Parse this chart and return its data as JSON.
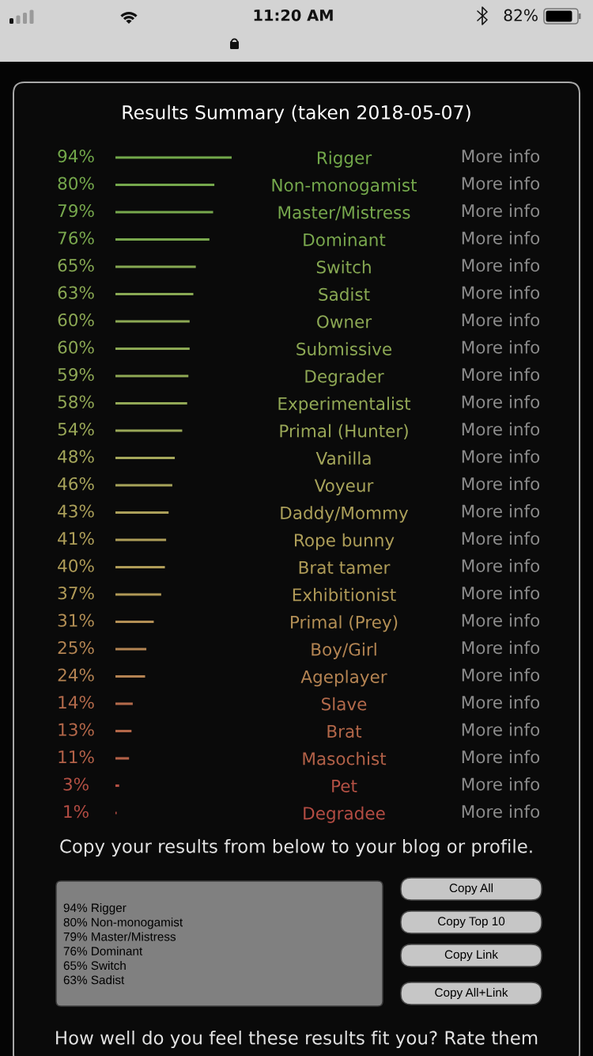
{
  "chart_data": {
    "type": "bar",
    "orientation": "horizontal",
    "title": "Results Summary (taken 2018-05-07)",
    "categories": [
      "Rigger",
      "Non-monogamist",
      "Master/Mistress",
      "Dominant",
      "Switch",
      "Sadist",
      "Owner",
      "Submissive",
      "Degrader",
      "Experimentalist",
      "Primal (Hunter)",
      "Vanilla",
      "Voyeur",
      "Daddy/Mommy",
      "Rope bunny",
      "Brat tamer",
      "Exhibitionist",
      "Primal (Prey)",
      "Boy/Girl",
      "Ageplayer",
      "Slave",
      "Brat",
      "Masochist",
      "Pet",
      "Degradee"
    ],
    "values": [
      94,
      80,
      79,
      76,
      65,
      63,
      60,
      60,
      59,
      58,
      54,
      48,
      46,
      43,
      41,
      40,
      37,
      31,
      25,
      24,
      14,
      13,
      11,
      3,
      1
    ],
    "value_labels": [
      "94%",
      "80%",
      "79%",
      "76%",
      "65%",
      "63%",
      "60%",
      "60%",
      "59%",
      "58%",
      "54%",
      "48%",
      "46%",
      "43%",
      "41%",
      "40%",
      "37%",
      "31%",
      "25%",
      "24%",
      "14%",
      "13%",
      "11%",
      "3%",
      "1%"
    ],
    "colors": [
      "#72a84a",
      "#75a84c",
      "#77a84d",
      "#7aa84e",
      "#86a852",
      "#89a853",
      "#8ca854",
      "#8ca854",
      "#8fa855",
      "#92a856",
      "#9aa858",
      "#a5a75b",
      "#a8a45b",
      "#aca05a",
      "#ae9e59",
      "#af9c58",
      "#b09957",
      "#b38f55",
      "#b48553",
      "#b48352",
      "#b36a4b",
      "#b36749",
      "#b36148",
      "#b35044",
      "#b34c43"
    ],
    "tick_labels": "y",
    "annotations": [
      "11:20 AM",
      "82%",
      "Copy your results from below to your blog or profile.",
      "94% Rigger\n80% Non-monogamist\n79% Master/Mistress\n76% Dominant\n65% Switch\n63% Sadist",
      "Copy All",
      "Copy Top 10",
      "Copy Link",
      "Copy All+Link",
      "How well do you feel these results fit you? Rate them",
      "More info",
      "More info",
      "More info",
      "More info",
      "More info",
      "More info",
      "More info",
      "More info",
      "More info",
      "More info",
      "More info",
      "More info",
      "More info",
      "More info",
      "More info",
      "More info",
      "More info",
      "More info",
      "More info",
      "More info",
      "More info",
      "More info",
      "More info",
      "More info",
      "More info"
    ]
  }
}
